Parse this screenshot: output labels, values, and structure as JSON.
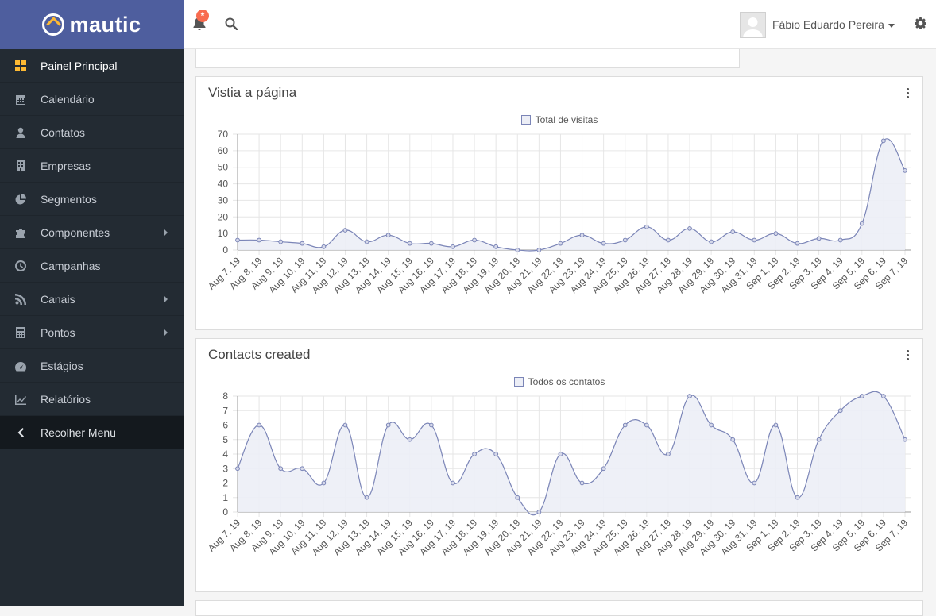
{
  "brand": {
    "name": "mautic"
  },
  "sidebar": {
    "items": [
      {
        "label": "Painel Principal",
        "icon": "dashboard-icon",
        "active": true
      },
      {
        "label": "Calendário",
        "icon": "calendar-icon"
      },
      {
        "label": "Contatos",
        "icon": "user-icon"
      },
      {
        "label": "Empresas",
        "icon": "building-icon"
      },
      {
        "label": "Segmentos",
        "icon": "pie-chart-icon"
      },
      {
        "label": "Componentes",
        "icon": "puzzle-icon",
        "submenu": true
      },
      {
        "label": "Campanhas",
        "icon": "clock-icon"
      },
      {
        "label": "Canais",
        "icon": "rss-icon",
        "submenu": true
      },
      {
        "label": "Pontos",
        "icon": "calculator-icon",
        "submenu": true
      },
      {
        "label": "Estágios",
        "icon": "tachometer-icon"
      },
      {
        "label": "Relatórios",
        "icon": "line-chart-icon"
      },
      {
        "label": "Recolher Menu",
        "icon": "chevron-left-icon",
        "collapse": true
      }
    ]
  },
  "topbar": {
    "notification_badge": "*",
    "user_name": "Fábio Eduardo Pereira"
  },
  "colors": {
    "brand": "#4e5e9e",
    "sidebar": "#232b33",
    "accent": "#fdb933",
    "series_line": "#7b85b7",
    "series_fill": "#eceef6"
  },
  "panels": [
    {
      "title": "Vistia a página",
      "legend": "Total de visitas"
    },
    {
      "title": "Contacts created",
      "legend": "Todos os contatos"
    }
  ],
  "chart_data": [
    {
      "type": "line",
      "title": "Vistia a página",
      "categories": [
        "Aug 7, 19",
        "Aug 8, 19",
        "Aug 9, 19",
        "Aug 10, 19",
        "Aug 11, 19",
        "Aug 12, 19",
        "Aug 13, 19",
        "Aug 14, 19",
        "Aug 15, 19",
        "Aug 16, 19",
        "Aug 17, 19",
        "Aug 18, 19",
        "Aug 19, 19",
        "Aug 20, 19",
        "Aug 21, 19",
        "Aug 22, 19",
        "Aug 23, 19",
        "Aug 24, 19",
        "Aug 25, 19",
        "Aug 26, 19",
        "Aug 27, 19",
        "Aug 28, 19",
        "Aug 29, 19",
        "Aug 30, 19",
        "Aug 31, 19",
        "Sep 1, 19",
        "Sep 2, 19",
        "Sep 3, 19",
        "Sep 4, 19",
        "Sep 5, 19",
        "Sep 6, 19",
        "Sep 7, 19"
      ],
      "series": [
        {
          "name": "Total de visitas",
          "values": [
            6,
            6,
            5,
            4,
            2,
            12,
            5,
            9,
            4,
            4,
            2,
            6,
            2,
            0,
            0,
            4,
            9,
            4,
            6,
            14,
            6,
            13,
            5,
            11,
            6,
            10,
            4,
            7,
            6,
            16,
            66,
            48
          ]
        }
      ],
      "yticks": [
        0,
        10,
        20,
        30,
        40,
        50,
        60,
        70
      ],
      "ylim": [
        0,
        70
      ],
      "legend_position": "top",
      "grid": true
    },
    {
      "type": "line",
      "title": "Contacts created",
      "categories": [
        "Aug 7, 19",
        "Aug 8, 19",
        "Aug 9, 19",
        "Aug 10, 19",
        "Aug 11, 19",
        "Aug 12, 19",
        "Aug 13, 19",
        "Aug 14, 19",
        "Aug 15, 19",
        "Aug 16, 19",
        "Aug 17, 19",
        "Aug 18, 19",
        "Aug 19, 19",
        "Aug 20, 19",
        "Aug 21, 19",
        "Aug 22, 19",
        "Aug 23, 19",
        "Aug 24, 19",
        "Aug 25, 19",
        "Aug 26, 19",
        "Aug 27, 19",
        "Aug 28, 19",
        "Aug 29, 19",
        "Aug 30, 19",
        "Aug 31, 19",
        "Sep 1, 19",
        "Sep 2, 19",
        "Sep 3, 19",
        "Sep 4, 19",
        "Sep 5, 19",
        "Sep 6, 19",
        "Sep 7, 19"
      ],
      "series": [
        {
          "name": "Todos os contatos",
          "values": [
            3,
            6,
            3,
            3,
            2,
            6,
            1,
            6,
            5,
            6,
            2,
            4,
            4,
            1,
            0,
            4,
            2,
            3,
            6,
            6,
            4,
            8,
            6,
            5,
            2,
            6,
            1,
            5,
            7,
            8,
            8,
            5
          ]
        }
      ],
      "yticks": [
        0,
        1,
        2,
        3,
        4,
        5,
        6,
        7,
        8
      ],
      "ylim": [
        0,
        8
      ],
      "legend_position": "top",
      "grid": true
    }
  ]
}
